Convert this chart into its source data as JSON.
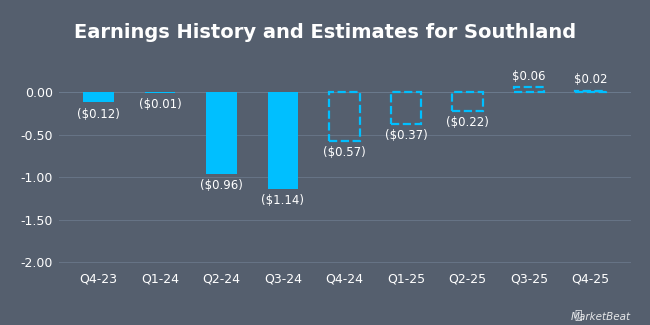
{
  "title": "Earnings History and Estimates for Southland",
  "categories": [
    "Q4-23",
    "Q1-24",
    "Q2-24",
    "Q3-24",
    "Q4-24",
    "Q1-25",
    "Q2-25",
    "Q3-25",
    "Q4-25"
  ],
  "values": [
    -0.12,
    -0.01,
    -0.96,
    -1.14,
    -0.57,
    -0.37,
    -0.22,
    0.06,
    0.02
  ],
  "is_estimate": [
    false,
    false,
    false,
    false,
    true,
    true,
    true,
    true,
    true
  ],
  "labels": [
    "($0.12)",
    "($0.01)",
    "($0.96)",
    "($1.14)",
    "($0.57)",
    "($0.37)",
    "($0.22)",
    "$0.06",
    "$0.02"
  ],
  "bar_color": "#00bfff",
  "background_color": "#555f6e",
  "grid_color": "#6b7a8d",
  "text_color": "#ffffff",
  "label_color": "#ffffff",
  "ylim": [
    -2.05,
    0.32
  ],
  "yticks": [
    0.0,
    -0.5,
    -1.0,
    -1.5,
    -2.0
  ],
  "ytick_labels": [
    "0.00",
    "-0.50",
    "-1.00",
    "-1.50",
    "-2.00"
  ],
  "title_fontsize": 14,
  "tick_fontsize": 9,
  "label_fontsize": 8.5,
  "bar_width": 0.5,
  "marketbeat_text": "MarketBeat"
}
